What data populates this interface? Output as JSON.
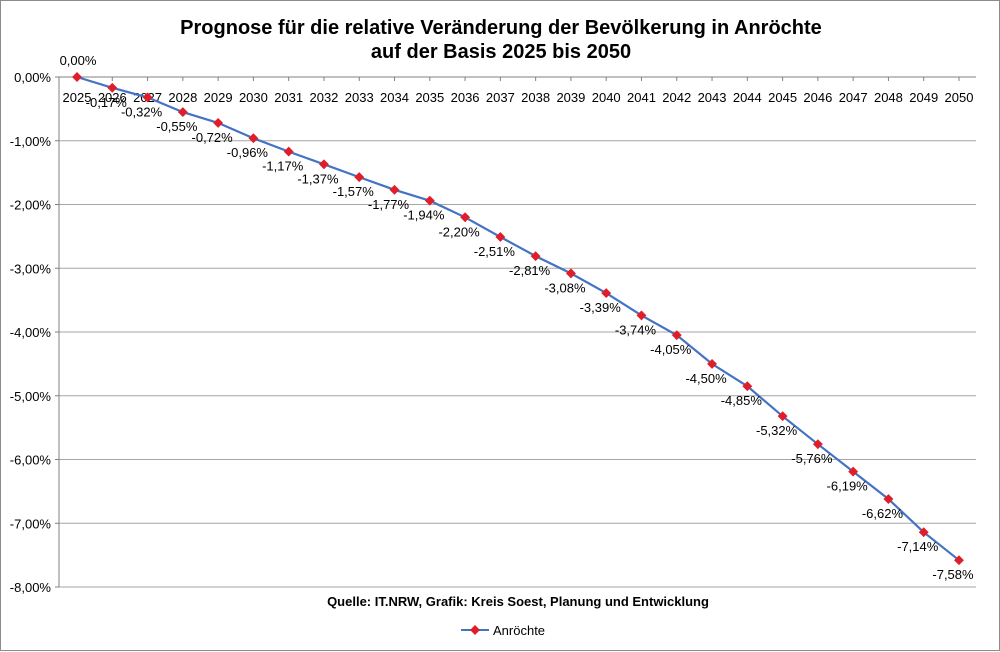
{
  "chart_data": {
    "type": "line",
    "title": [
      "Prognose für die relative Veränderung der Bevölkerung in Anröchte",
      "auf der Basis 2025 bis 2050"
    ],
    "x": [
      "2025",
      "2026",
      "2027",
      "2028",
      "2029",
      "2030",
      "2031",
      "2032",
      "2033",
      "2034",
      "2035",
      "2036",
      "2037",
      "2038",
      "2039",
      "2040",
      "2041",
      "2042",
      "2043",
      "2044",
      "2045",
      "2046",
      "2047",
      "2048",
      "2049",
      "2050"
    ],
    "series": [
      {
        "name": "Anröchte",
        "values": [
          0.0,
          -0.17,
          -0.32,
          -0.55,
          -0.72,
          -0.96,
          -1.17,
          -1.37,
          -1.57,
          -1.77,
          -1.94,
          -2.2,
          -2.51,
          -2.81,
          -3.08,
          -3.39,
          -3.74,
          -4.05,
          -4.5,
          -4.85,
          -5.32,
          -5.76,
          -6.19,
          -6.62,
          -7.14,
          -7.58
        ],
        "labels": [
          "0,00%",
          "-0,17%",
          "-0,32%",
          "-0,55%",
          "-0,72%",
          "-0,96%",
          "-1,17%",
          "-1,37%",
          "-1,57%",
          "-1,77%",
          "-1,94%",
          "-2,20%",
          "-2,51%",
          "-2,81%",
          "-3,08%",
          "-3,39%",
          "-3,74%",
          "-4,05%",
          "-4,50%",
          "-4,85%",
          "-5,32%",
          "-5,76%",
          "-6,19%",
          "-6,62%",
          "-7,14%",
          "-7,58%"
        ],
        "line_color": "#4472c4",
        "marker_color": "#e01e2a"
      }
    ],
    "y_ticks": [
      "0,00%",
      "-1,00%",
      "-2,00%",
      "-3,00%",
      "-4,00%",
      "-5,00%",
      "-6,00%",
      "-7,00%",
      "-8,00%"
    ],
    "ylim": [
      -8,
      0
    ],
    "grid": true,
    "legend_position": "bottom",
    "source": "Quelle: IT.NRW, Grafik: Kreis Soest, Planung und Entwicklung"
  }
}
